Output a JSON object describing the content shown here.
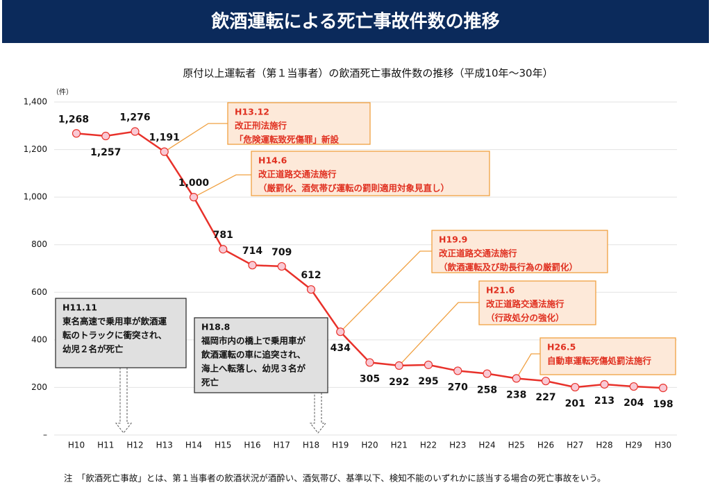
{
  "header": {
    "title": "飲酒運転による死亡事故件数の推移"
  },
  "chart_data": {
    "type": "line",
    "title": "原付以上運転者（第１当事者）の飲酒死亡事故件数の推移（平成10年～30年）",
    "y_unit": "（件）",
    "categories": [
      "H10",
      "H11",
      "H12",
      "H13",
      "H14",
      "H15",
      "H16",
      "H17",
      "H18",
      "H19",
      "H20",
      "H21",
      "H22",
      "H23",
      "H24",
      "H25",
      "H26",
      "H27",
      "H28",
      "H29",
      "H30"
    ],
    "values": [
      1268,
      1257,
      1276,
      1191,
      1000,
      781,
      714,
      709,
      612,
      434,
      305,
      292,
      295,
      270,
      258,
      238,
      227,
      201,
      213,
      204,
      198
    ],
    "value_labels": [
      "1,268",
      "1,257",
      "1,276",
      "1,191",
      "1,000",
      "781",
      "714",
      "709",
      "612",
      "434",
      "305",
      "292",
      "295",
      "270",
      "258",
      "238",
      "227",
      "201",
      "213",
      "204",
      "198"
    ],
    "color": "#e8312a",
    "marker_color": "#f9c9d4",
    "ylim": [
      0,
      1400
    ],
    "yticks": [
      {
        "value": 0,
        "label": "–"
      },
      200,
      400,
      600,
      800,
      {
        "value": 1000,
        "label": "1,000"
      },
      {
        "value": 1200,
        "label": "1,200"
      },
      {
        "value": 1400,
        "label": "1,400"
      }
    ],
    "grid": true,
    "annotations": [
      {
        "style": "law",
        "lines": [
          "H13.12",
          "改正刑法施行",
          "「危険運転致死傷罪」新設"
        ]
      },
      {
        "style": "law",
        "lines": [
          "H14.6",
          "改正道路交通法施行",
          "（厳罰化、酒気帯び運転の罰則適用対象見直し）"
        ]
      },
      {
        "style": "law",
        "lines": [
          "H19.9",
          "改正道路交通法施行",
          "（飲酒運転及び助長行為の厳罰化）"
        ]
      },
      {
        "style": "law",
        "lines": [
          "H21.6",
          "改正道路交通法施行",
          "（行政処分の強化）"
        ]
      },
      {
        "style": "law",
        "lines": [
          "H26.5",
          "自動車運転死傷処罰法施行"
        ]
      },
      {
        "style": "accident",
        "lines": [
          "H11.11",
          "東名高速で乗用車が飲酒運",
          "転のトラックに衝突され、",
          "幼児２名が死亡"
        ]
      },
      {
        "style": "accident",
        "lines": [
          "H18.8",
          "福岡市内の橋上で乗用車が",
          "飲酒運転の車に追突され、",
          "海上へ転落し、幼児３名が",
          "死亡"
        ]
      }
    ],
    "note": "注　「飲酒死亡事故」とは、第１当事者の飲酒状況が酒酔い、酒気帯び、基準以下、検知不能のいずれかに該当する場合の死亡事故をいう。"
  }
}
